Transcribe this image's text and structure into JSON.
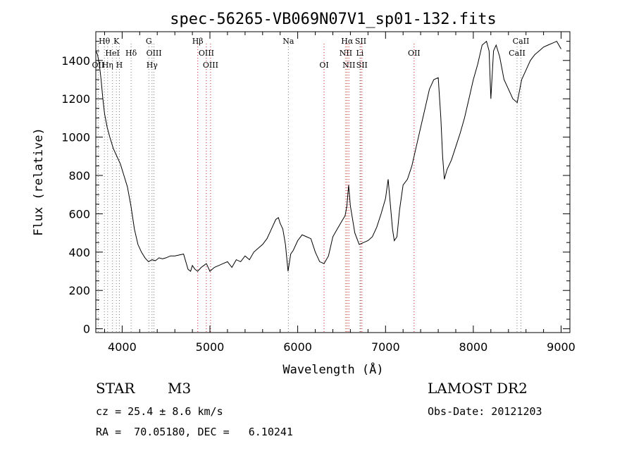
{
  "chart_data": {
    "type": "line",
    "title": "spec-56265-VB069N07V1_sp01-132.fits",
    "xlabel": "Wavelength (Å)",
    "ylabel": "Flux (relative)",
    "xlim": [
      3700,
      9100
    ],
    "ylim": [
      -20,
      1550
    ],
    "xticks": [
      4000,
      5000,
      6000,
      7000,
      8000,
      9000
    ],
    "yticks": [
      0,
      200,
      400,
      600,
      800,
      1000,
      1200,
      1400
    ],
    "grid": false,
    "series": [
      {
        "x": [
          3700,
          3720,
          3740,
          3760,
          3780,
          3800,
          3830,
          3860,
          3900,
          3940,
          3980,
          4020,
          4060,
          4100,
          4140,
          4180,
          4220,
          4260,
          4300,
          4340,
          4380,
          4420,
          4460,
          4500,
          4550,
          4600,
          4650,
          4700,
          4750,
          4780,
          4800,
          4830,
          4860,
          4900,
          4930,
          4960,
          5000,
          5050,
          5100,
          5150,
          5200,
          5250,
          5300,
          5350,
          5400,
          5450,
          5500,
          5550,
          5600,
          5650,
          5700,
          5750,
          5780,
          5800,
          5830,
          5860,
          5890,
          5920,
          5950,
          6000,
          6050,
          6100,
          6150,
          6200,
          6250,
          6300,
          6350,
          6400,
          6450,
          6500,
          6540,
          6560,
          6580,
          6600,
          6650,
          6700,
          6750,
          6800,
          6850,
          6900,
          6950,
          7000,
          7030,
          7060,
          7080,
          7100,
          7130,
          7160,
          7200,
          7250,
          7300,
          7350,
          7400,
          7450,
          7500,
          7550,
          7600,
          7630,
          7650,
          7670,
          7700,
          7750,
          7800,
          7850,
          7900,
          7950,
          8000,
          8050,
          8100,
          8150,
          8180,
          8200,
          8230,
          8260,
          8300,
          8350,
          8400,
          8450,
          8500,
          8550,
          8600,
          8650,
          8700,
          8750,
          8800,
          8850,
          8900,
          8950,
          9000
        ],
        "values": [
          1450,
          1430,
          1380,
          1300,
          1200,
          1120,
          1050,
          1000,
          940,
          900,
          860,
          800,
          740,
          640,
          520,
          440,
          400,
          370,
          350,
          360,
          355,
          370,
          365,
          370,
          380,
          380,
          385,
          390,
          310,
          300,
          330,
          310,
          300,
          320,
          330,
          340,
          300,
          320,
          330,
          340,
          350,
          320,
          360,
          350,
          380,
          360,
          400,
          420,
          440,
          470,
          520,
          570,
          580,
          550,
          520,
          440,
          300,
          390,
          410,
          460,
          490,
          480,
          470,
          400,
          350,
          340,
          380,
          480,
          520,
          560,
          590,
          640,
          750,
          640,
          500,
          440,
          450,
          460,
          480,
          530,
          600,
          680,
          780,
          620,
          520,
          460,
          480,
          620,
          750,
          780,
          850,
          950,
          1050,
          1150,
          1250,
          1300,
          1310,
          1100,
          900,
          780,
          830,
          880,
          950,
          1020,
          1100,
          1200,
          1300,
          1380,
          1480,
          1500,
          1450,
          1200,
          1450,
          1480,
          1420,
          1300,
          1250,
          1200,
          1180,
          1300,
          1350,
          1400,
          1430,
          1450,
          1470,
          1480,
          1490,
          1500,
          1460
        ]
      }
    ],
    "line_marks": [
      {
        "label": "Hθ",
        "wave": 3798,
        "row": 1
      },
      {
        "label": "K",
        "wave": 3934,
        "row": 1
      },
      {
        "label": "G",
        "wave": 4304,
        "row": 1
      },
      {
        "label": "Hβ",
        "wave": 4861,
        "row": 1
      },
      {
        "label": "Na",
        "wave": 5893,
        "row": 1
      },
      {
        "label": "Hα",
        "wave": 6563,
        "row": 1
      },
      {
        "label": "SII",
        "wave": 6717,
        "row": 1
      },
      {
        "label": "CaII",
        "wave": 8542,
        "row": 1
      },
      {
        "label": "HeI",
        "wave": 3889,
        "row": 2
      },
      {
        "label": "Hδ",
        "wave": 4102,
        "row": 2
      },
      {
        "label": "OIII",
        "wave": 4363,
        "row": 2
      },
      {
        "label": "OIII",
        "wave": 4959,
        "row": 2
      },
      {
        "label": "NII",
        "wave": 6548,
        "row": 2
      },
      {
        "label": "Li",
        "wave": 6708,
        "row": 2
      },
      {
        "label": "OII",
        "wave": 7325,
        "row": 2
      },
      {
        "label": "CaII",
        "wave": 8498,
        "row": 2
      },
      {
        "label": "OII",
        "wave": 3727,
        "row": 3
      },
      {
        "label": "Hη",
        "wave": 3835,
        "row": 3
      },
      {
        "label": "H",
        "wave": 3968,
        "row": 3
      },
      {
        "label": "Hγ",
        "wave": 4340,
        "row": 3
      },
      {
        "label": "OIII",
        "wave": 5007,
        "row": 3
      },
      {
        "label": "OI",
        "wave": 6300,
        "row": 3
      },
      {
        "label": "NII",
        "wave": 6583,
        "row": 3
      },
      {
        "label": "SII",
        "wave": 6731,
        "row": 3
      }
    ],
    "guide_lines": [
      {
        "wave": 3727,
        "color": "#777777"
      },
      {
        "wave": 3798,
        "color": "#777777"
      },
      {
        "wave": 3835,
        "color": "#777777"
      },
      {
        "wave": 3889,
        "color": "#777777"
      },
      {
        "wave": 3934,
        "color": "#777777"
      },
      {
        "wave": 3968,
        "color": "#777777"
      },
      {
        "wave": 4102,
        "color": "#777777"
      },
      {
        "wave": 4304,
        "color": "#777777"
      },
      {
        "wave": 4340,
        "color": "#777777"
      },
      {
        "wave": 4363,
        "color": "#777777"
      },
      {
        "wave": 4861,
        "color": "#cc2222"
      },
      {
        "wave": 4959,
        "color": "#cc2222"
      },
      {
        "wave": 5007,
        "color": "#cc2222"
      },
      {
        "wave": 5893,
        "color": "#777777"
      },
      {
        "wave": 6300,
        "color": "#cc2222"
      },
      {
        "wave": 6548,
        "color": "#cc2222"
      },
      {
        "wave": 6563,
        "color": "#cc2222"
      },
      {
        "wave": 6583,
        "color": "#cc2222"
      },
      {
        "wave": 6708,
        "color": "#777777"
      },
      {
        "wave": 6717,
        "color": "#cc2222"
      },
      {
        "wave": 6731,
        "color": "#cc2222"
      },
      {
        "wave": 7325,
        "color": "#cc2222"
      },
      {
        "wave": 8498,
        "color": "#777777"
      },
      {
        "wave": 8542,
        "color": "#777777"
      }
    ]
  },
  "info": {
    "object_class": "STAR",
    "subclass": "M3",
    "survey": "LAMOST DR2",
    "redshift": "cz = 25.4 ± 8.6 km/s",
    "obs_date": "Obs-Date: 20121203",
    "coords": "RA =  70.05180, DEC =   6.10241"
  }
}
